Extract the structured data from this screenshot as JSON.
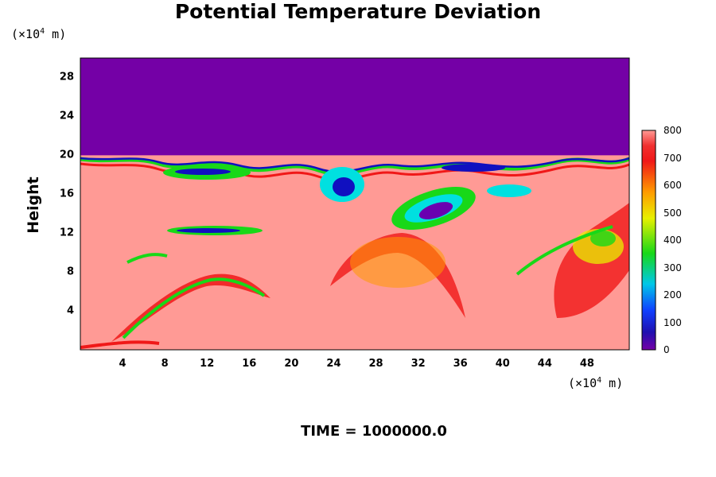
{
  "chart_data": {
    "type": "heatmap",
    "title": "Potential Temperature Deviation",
    "ylabel": "Height",
    "y_unit": "(×10⁴ m)",
    "x_unit": "(×10⁴ m)",
    "unit_base": "(×10",
    "unit_exp": "4",
    "unit_tail": " m)",
    "xlim": [
      0,
      52
    ],
    "ylim": [
      0,
      30
    ],
    "x_ticks": [
      "4",
      "8",
      "12",
      "16",
      "20",
      "24",
      "28",
      "32",
      "36",
      "40",
      "44",
      "48"
    ],
    "y_ticks": [
      "4",
      "8",
      "12",
      "16",
      "20",
      "24",
      "28"
    ],
    "colorbar": {
      "range": [
        0,
        800
      ],
      "ticks": [
        "0",
        "100",
        "200",
        "300",
        "400",
        "500",
        "600",
        "700",
        "800"
      ]
    },
    "regions": {
      "upper_value": 0,
      "upper_boundary_height": 20,
      "lower_background_value": 800
    }
  },
  "footer": {
    "time_label": "TIME = 1000000.0"
  },
  "colors": {
    "upper": "#7400a6",
    "background": "#ff9a95",
    "red": "#f01818",
    "orange": "#ff9a00",
    "yellow": "#f2f200",
    "green": "#18d818",
    "cyan": "#00e0e0",
    "blue": "#1010c0"
  }
}
